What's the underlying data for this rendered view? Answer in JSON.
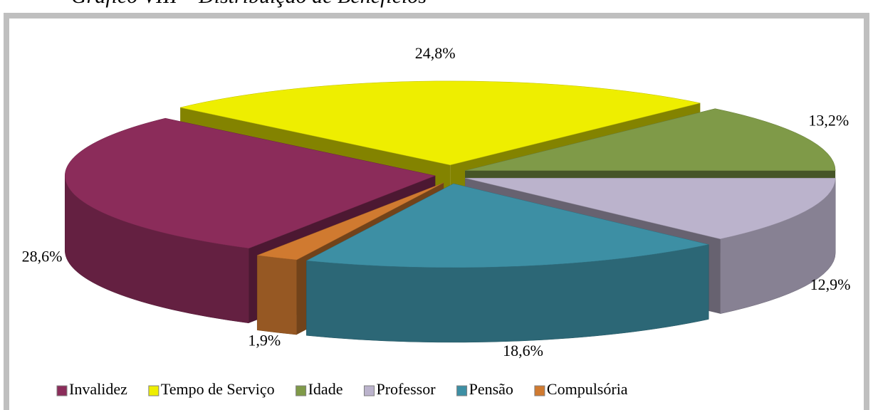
{
  "chart_data": {
    "type": "pie",
    "title": "Gráfico VIII – Distribuição de Benefícios",
    "categories": [
      "Invalidez",
      "Tempo de Serviço",
      "Idade",
      "Professor",
      "Pensão",
      "Compulsória"
    ],
    "values": [
      28.6,
      24.8,
      13.2,
      12.9,
      18.6,
      1.9
    ],
    "value_labels": [
      "28,6%",
      "24,8%",
      "13,2%",
      "12,9%",
      "18,6%",
      "1,9%"
    ],
    "colors": [
      "#8b2c5a",
      "#eeee00",
      "#7f9a48",
      "#bbb3cc",
      "#3d8fa4",
      "#d07a30"
    ],
    "legend": "bottom"
  }
}
